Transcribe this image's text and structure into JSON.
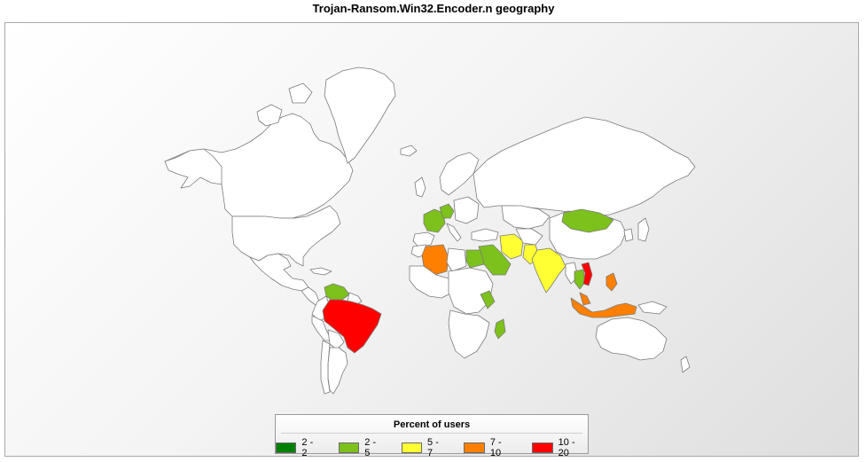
{
  "title": "Trojan-Ransom.Win32.Encoder.n  geography",
  "legend": {
    "title": "Percent of users",
    "items": [
      {
        "label": "2 - 2",
        "color": "#008000"
      },
      {
        "label": "2 - 5",
        "color": "#7dc11c"
      },
      {
        "label": "5 - 7",
        "color": "#ffff33"
      },
      {
        "label": "7 - 10",
        "color": "#ff8000"
      },
      {
        "label": "10 - 20",
        "color": "#ff0000"
      }
    ]
  },
  "colors": {
    "land": "#ffffff",
    "border": "#7a7a7a"
  }
}
